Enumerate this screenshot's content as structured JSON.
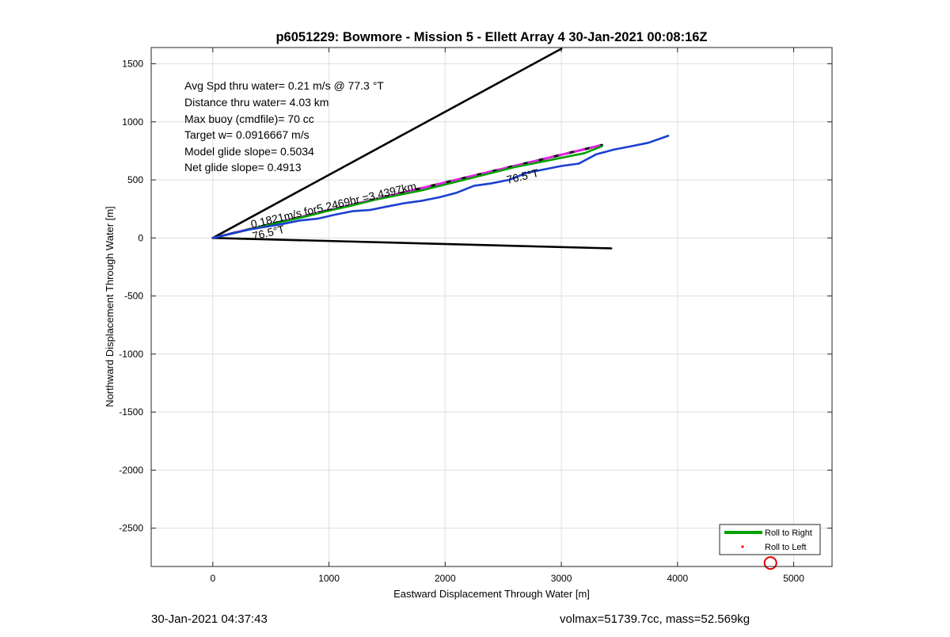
{
  "chart_data": {
    "type": "line",
    "title": "p6051229: Bowmore - Mission 5 - Ellett Array 4 30-Jan-2021 00:08:16Z",
    "xlabel": "Eastward Displacement Through Water [m]",
    "ylabel": "Northward Displacement Through Water [m]",
    "xlim": [
      -530,
      5330
    ],
    "ylim": [
      -2830,
      1640
    ],
    "xticks": [
      0,
      1000,
      2000,
      3000,
      4000,
      5000
    ],
    "yticks": [
      -2500,
      -2000,
      -1500,
      -1000,
      -500,
      0,
      500,
      1000,
      1500
    ],
    "grid": true,
    "legend_placement": "bottom-right",
    "legend": [
      {
        "label": "Roll to Right",
        "color": "#00a000",
        "style": "line"
      },
      {
        "label": "Roll to Left",
        "color": "#ff0000",
        "style": "dot"
      }
    ],
    "annotations": [
      "Avg Spd thru water=  0.21 m/s @  77.3 °T",
      "Distance thru water=  4.03 km",
      "Max buoy (cmdfile)= 70 cc",
      "Target w= 0.0916667 m/s",
      "Model glide slope= 0.5034",
      "Net glide slope= 0.4913"
    ],
    "track_label": "0.1821m/s for5.2469hr =3.4397km",
    "heading_labels": [
      "76.5°T",
      "76.5°T"
    ],
    "series": [
      {
        "color": "#000000",
        "x": [
          0,
          3000
        ],
        "y": [
          0,
          1630
        ]
      },
      {
        "color": "#000000",
        "x": [
          0,
          3430
        ],
        "y": [
          0,
          -90
        ]
      },
      {
        "color": "#000000",
        "dash": true,
        "x": [
          0,
          3350
        ],
        "y": [
          0,
          800
        ]
      },
      {
        "color": "#e020e0",
        "dash": true,
        "x": [
          0,
          3350
        ],
        "y": [
          0,
          800
        ]
      },
      {
        "color": "#00a000",
        "x": [
          0,
          200,
          400,
          600,
          800,
          1000,
          1200,
          1400,
          1600,
          1800,
          2000,
          2200,
          2400,
          2600,
          2800,
          3000,
          3200,
          3350
        ],
        "y": [
          0,
          45,
          95,
          140,
          185,
          235,
          280,
          330,
          370,
          410,
          460,
          510,
          560,
          610,
          650,
          690,
          730,
          790
        ]
      },
      {
        "color": "#1a3fd0",
        "x": [
          0,
          150,
          300,
          450,
          600,
          750,
          900,
          1050,
          1200,
          1350,
          1500,
          1650,
          1800,
          1950,
          2100,
          2250,
          2400,
          2550,
          2700,
          2850,
          3000,
          3150,
          3300,
          3450,
          3600,
          3750,
          3920
        ],
        "y": [
          0,
          35,
          70,
          95,
          120,
          150,
          165,
          200,
          230,
          240,
          270,
          300,
          320,
          350,
          390,
          450,
          470,
          500,
          560,
          590,
          620,
          640,
          720,
          760,
          790,
          820,
          880
        ]
      }
    ],
    "marker": {
      "type": "circle",
      "color": "#e00000",
      "x": 4800,
      "y": -2800
    }
  },
  "footer": {
    "timestamp": "30-Jan-2021 04:37:43",
    "summary": "volmax=51739.7cc, mass=52.569kg"
  }
}
